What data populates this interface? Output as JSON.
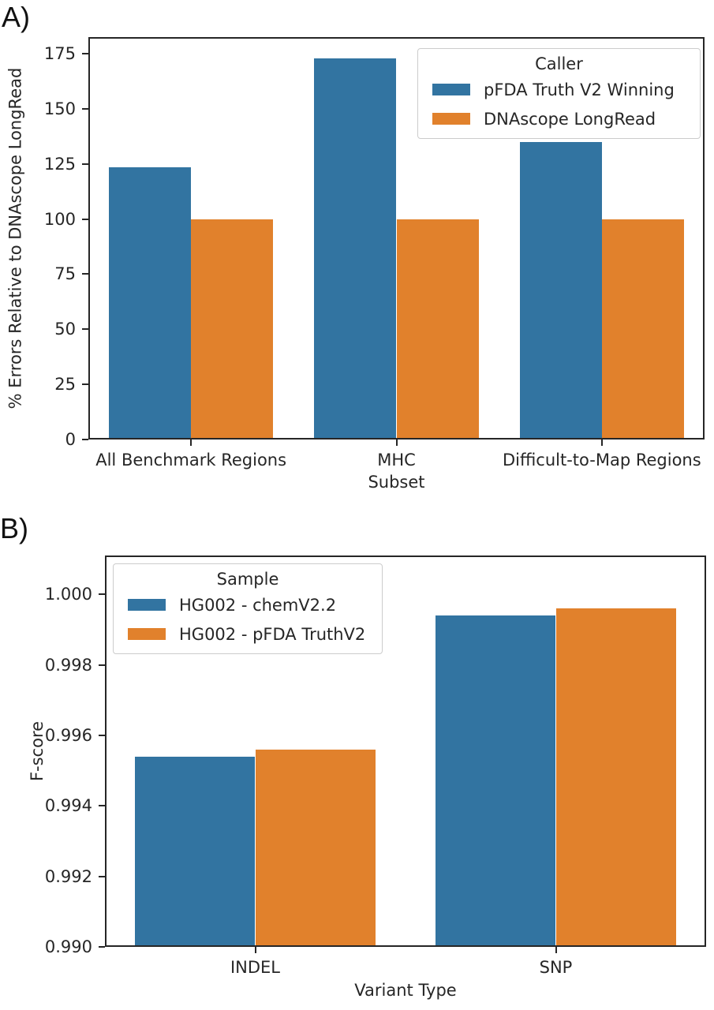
{
  "panels": [
    {
      "label": "A)"
    },
    {
      "label": "B)"
    }
  ],
  "colors": {
    "series_blue": "#3274a1",
    "series_orange": "#e1812c",
    "axis": "#262626",
    "legend_border": "#cccccc",
    "background": "#ffffff"
  },
  "chart_data": [
    {
      "type": "bar",
      "panel": "A",
      "categories": [
        "All Benchmark Regions",
        "MHC",
        "Difficult-to-Map Regions"
      ],
      "series": [
        {
          "name": "pFDA Truth V2 Winning",
          "color": "#3274a1",
          "values": [
            123.5,
            173,
            135
          ]
        },
        {
          "name": "DNAscope LongRead",
          "color": "#e1812c",
          "values": [
            100,
            100,
            100
          ]
        }
      ],
      "legend_title": "Caller",
      "legend_position": "upper right",
      "title": "",
      "xlabel": "Subset",
      "ylabel": "% Errors Relative to DNAscope LongRead",
      "ylim": [
        0,
        182.5
      ],
      "yticks": [
        0,
        25,
        50,
        75,
        100,
        125,
        150,
        175
      ],
      "ytick_labels": [
        "0",
        "25",
        "50",
        "75",
        "100",
        "125",
        "150",
        "175"
      ],
      "grid": false
    },
    {
      "type": "bar",
      "panel": "B",
      "categories": [
        "INDEL",
        "SNP"
      ],
      "series": [
        {
          "name": "HG002 - chemV2.2",
          "color": "#3274a1",
          "values": [
            0.9954,
            0.9994
          ]
        },
        {
          "name": "HG002 - pFDA TruthV2",
          "color": "#e1812c",
          "values": [
            0.9956,
            0.9996
          ]
        }
      ],
      "legend_title": "Sample",
      "legend_position": "upper left",
      "title": "",
      "xlabel": "Variant Type",
      "ylabel": "F-score",
      "ylim": [
        0.99,
        1.0011
      ],
      "yticks": [
        0.99,
        0.992,
        0.994,
        0.996,
        0.998,
        1.0
      ],
      "ytick_labels": [
        "0.990",
        "0.992",
        "0.994",
        "0.996",
        "0.998",
        "1.000"
      ],
      "grid": false
    }
  ]
}
